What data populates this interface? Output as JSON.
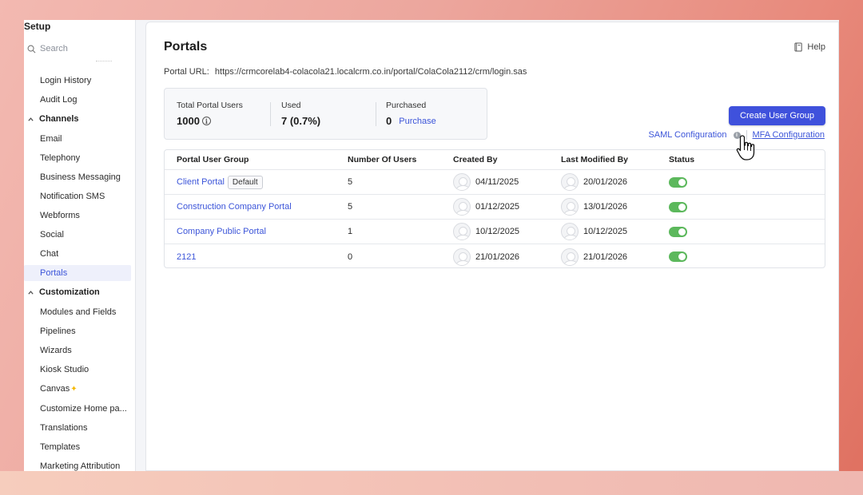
{
  "sidebar": {
    "title": "Setup",
    "search_placeholder": "Search",
    "items": [
      {
        "label": "Login History"
      },
      {
        "label": "Audit Log"
      }
    ],
    "channels_label": "Channels",
    "channels": [
      {
        "label": "Email"
      },
      {
        "label": "Telephony"
      },
      {
        "label": "Business Messaging"
      },
      {
        "label": "Notification SMS"
      },
      {
        "label": "Webforms"
      },
      {
        "label": "Social"
      },
      {
        "label": "Chat"
      },
      {
        "label": "Portals"
      }
    ],
    "customization_label": "Customization",
    "customization": [
      {
        "label": "Modules and Fields"
      },
      {
        "label": "Pipelines"
      },
      {
        "label": "Wizards"
      },
      {
        "label": "Kiosk Studio"
      },
      {
        "label": "Canvas"
      },
      {
        "label": "Customize Home pa..."
      },
      {
        "label": "Translations"
      },
      {
        "label": "Templates"
      },
      {
        "label": "Marketing Attribution"
      }
    ]
  },
  "header": {
    "title": "Portals",
    "help_label": "Help",
    "portal_url_label": "Portal URL:",
    "portal_url": "https://crmcorelab4-colacola21.localcrm.co.in/portal/ColaCola2112/crm/login.sas"
  },
  "stats": {
    "total_label": "Total Portal Users",
    "total_value": "1000",
    "used_label": "Used",
    "used_value": "7 (0.7%)",
    "purchased_label": "Purchased",
    "purchased_value": "0",
    "purchase_link": "Purchase"
  },
  "actions": {
    "create_label": "Create User Group",
    "saml_label": "SAML Configuration",
    "mfa_label": "MFA Configuration"
  },
  "table": {
    "headers": [
      "Portal User Group",
      "Number Of Users",
      "Created By",
      "Last Modified By",
      "Status"
    ],
    "default_badge": "Default",
    "rows": [
      {
        "name": "Client Portal",
        "users": "5",
        "created": "04/11/2025",
        "modified": "20/01/2026",
        "enabled": true
      },
      {
        "name": "Construction Company Portal",
        "users": "5",
        "created": "01/12/2025",
        "modified": "13/01/2026",
        "enabled": true
      },
      {
        "name": "Company Public Portal",
        "users": "1",
        "created": "10/12/2025",
        "modified": "10/12/2025",
        "enabled": true
      },
      {
        "name": "2121",
        "users": "0",
        "created": "21/01/2026",
        "modified": "21/01/2026",
        "enabled": true
      }
    ]
  },
  "colors": {
    "accent": "#3f51dc",
    "link": "#3c55d9",
    "toggle_on": "#5cb85c"
  }
}
